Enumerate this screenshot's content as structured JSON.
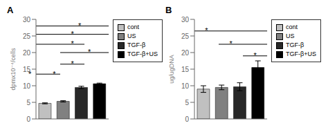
{
  "chart_data": [
    {
      "type": "bar",
      "title": "A",
      "ylabel": "dpmx10⁻⁴/cells",
      "categories": [
        "cont",
        "US",
        "TGF-β",
        "TGF-β+US"
      ],
      "values": [
        4.7,
        5.3,
        9.5,
        10.6
      ],
      "errors": [
        0.15,
        0.2,
        0.35,
        0.2
      ],
      "colors": [
        "#c0c0c0",
        "#808080",
        "#282828",
        "#000000"
      ],
      "ylim": [
        0,
        30
      ],
      "yticks": [
        0,
        5,
        10,
        15,
        20,
        25,
        30
      ],
      "grid": false,
      "legend": "right",
      "tick_labels": "y",
      "significance_lines": [
        {
          "y": 13.5,
          "x1": 0,
          "x2": 1,
          "stars": [
            {
              "text": "*",
              "x": -0.25,
              "y": 12.8
            },
            {
              "text": "*",
              "x": 0.75,
              "y": 12.8
            }
          ]
        },
        {
          "y": 16.5,
          "x1": 1,
          "x2": 2,
          "stars": [
            {
              "text": "*",
              "x": 1.5,
              "y": 15.8
            }
          ]
        },
        {
          "y": 20.0,
          "x1": 1,
          "x2": 3,
          "stars": [
            {
              "text": "*",
              "x": 2.2,
              "y": 19.3
            }
          ]
        },
        {
          "y": 22.5,
          "x1": 0,
          "x2": 2,
          "stars": [
            {
              "text": "*",
              "x": 1.5,
              "y": 21.8
            }
          ]
        },
        {
          "y": 25.5,
          "x1": 0,
          "x2": 3,
          "stars": [
            {
              "text": "*",
              "x": 1.5,
              "y": 24.8
            }
          ]
        },
        {
          "y": 28.0,
          "x1": 0,
          "x2": 3,
          "stars": [
            {
              "text": "*",
              "x": 1.8,
              "y": 27.3
            }
          ]
        }
      ]
    },
    {
      "type": "bar",
      "title": "B",
      "ylabel": "ug/ugDNA",
      "categories": [
        "cont",
        "US",
        "TGF-β",
        "TGF-β+US"
      ],
      "values": [
        9.0,
        9.5,
        9.7,
        15.5
      ],
      "errors": [
        1.0,
        0.7,
        1.2,
        2.0
      ],
      "colors": [
        "#c0c0c0",
        "#808080",
        "#282828",
        "#000000"
      ],
      "ylim": [
        0,
        30
      ],
      "yticks": [
        0,
        5,
        10,
        15,
        20,
        25,
        30
      ],
      "grid": false,
      "legend": "right",
      "tick_labels": "y",
      "significance_lines": [
        {
          "y": 26.5,
          "x1": 0,
          "x2": 3,
          "stars": [
            {
              "text": "*",
              "x": 0.5,
              "y": 25.8
            }
          ]
        },
        {
          "y": 22.5,
          "x1": 1,
          "x2": 3,
          "stars": [
            {
              "text": "*",
              "x": 1.5,
              "y": 21.8
            }
          ]
        },
        {
          "y": 19.0,
          "x1": 2,
          "x2": 3,
          "stars": [
            {
              "text": "*",
              "x": 2.5,
              "y": 18.3
            }
          ]
        }
      ]
    }
  ]
}
